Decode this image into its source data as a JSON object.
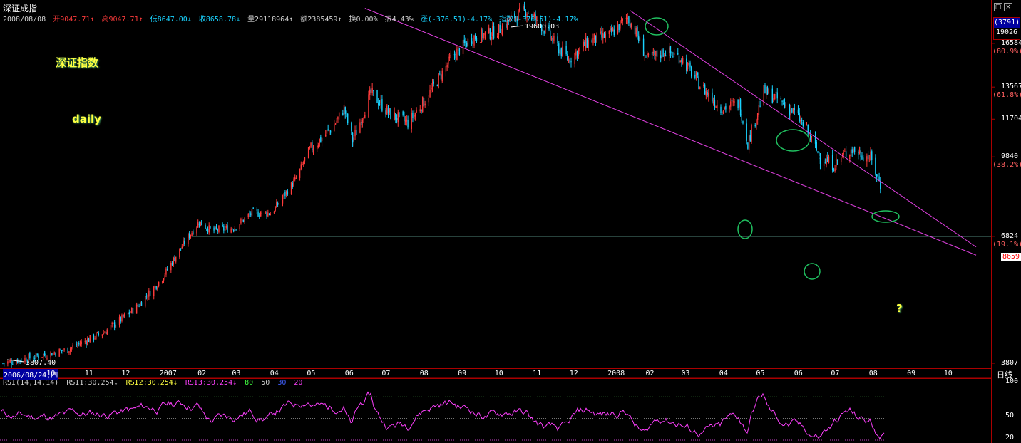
{
  "window": {
    "title": "深证成指",
    "buttons": [
      "▢",
      "×"
    ]
  },
  "info": {
    "date": "2008/08/08",
    "open": "开9047.71↑",
    "high": "高9047.71↑",
    "low": "低8647.00↓",
    "close": "收8658.78↓",
    "volume": "量29118964↑",
    "amount": "额2385459↑",
    "turnover": "换0.00%",
    "amplitude": "振4.43%",
    "change": "涨(-376.51)-4.17%",
    "index": "指数(-376.51)-4.17%"
  },
  "axis_box": {
    "top": "(3791)",
    "bottom": "19026"
  },
  "labels": {
    "name": "深证指数",
    "period": "daily",
    "question": "?"
  },
  "annotations": {
    "high_label": "19600.03",
    "low_label": "3807.40"
  },
  "colors": {
    "up": "#ff3b3b",
    "down": "#19d3ff",
    "trend": "#e040e0",
    "support": "#6ab0a0",
    "ellipse": "#20c060",
    "rsi": "#ff40ff",
    "grid": "#a00000"
  },
  "x_axis": {
    "selected": "2006/08/24,四",
    "unit": "日线"
  },
  "rsi_header": {
    "name": "RSI(14,14,14)",
    "rsi1": "RSI1:30.254↓",
    "rsi2": "RSI2:30.254↓",
    "rsi3": "RSI3:30.254↓",
    "levels": [
      "80",
      "50",
      "30",
      "20"
    ],
    "axis": [
      "100",
      "50",
      "20"
    ]
  },
  "chart_data": {
    "type": "candlestick",
    "title": "深证成指",
    "period": "daily",
    "y_scale": "log",
    "ylim": [
      3807,
      19026
    ],
    "price_ticks": [
      {
        "value": 16584,
        "pct": "(80.9%)"
      },
      {
        "value": 13567,
        "pct": "(61.8%)"
      },
      {
        "value": 11704,
        "pct": ""
      },
      {
        "value": 9840,
        "pct": "(38.2%)"
      },
      {
        "value": 6824,
        "pct": "(19.1%)"
      },
      {
        "value": 3807,
        "pct": ""
      }
    ],
    "current_price": "8659",
    "x_ticks": [
      "10",
      "11",
      "12",
      "2007",
      "02",
      "03",
      "04",
      "05",
      "06",
      "07",
      "08",
      "09",
      "10",
      "11",
      "12",
      "2008",
      "02",
      "03",
      "04",
      "05",
      "06",
      "07",
      "08",
      "09",
      "10"
    ],
    "close_path": [
      [
        "2006-08-24",
        3807
      ],
      [
        "2006-10-15",
        4050
      ],
      [
        "2006-11-15",
        4400
      ],
      [
        "2006-12-10",
        4900
      ],
      [
        "2006-12-31",
        5600
      ],
      [
        "2007-01-20",
        6700
      ],
      [
        "2007-01-31",
        7300
      ],
      [
        "2007-02-10",
        7000
      ],
      [
        "2007-02-28",
        7100
      ],
      [
        "2007-03-15",
        7600
      ],
      [
        "2007-03-31",
        7600
      ],
      [
        "2007-04-20",
        8900
      ],
      [
        "2007-04-30",
        10100
      ],
      [
        "2007-05-20",
        11300
      ],
      [
        "2007-05-29",
        12300
      ],
      [
        "2007-06-05",
        10600
      ],
      [
        "2007-06-20",
        13200
      ],
      [
        "2007-07-05",
        12000
      ],
      [
        "2007-07-20",
        11500
      ],
      [
        "2007-08-05",
        13000
      ],
      [
        "2007-08-25",
        15600
      ],
      [
        "2007-09-10",
        17000
      ],
      [
        "2007-09-30",
        17500
      ],
      [
        "2007-10-15",
        18800
      ],
      [
        "2007-10-25",
        19300
      ],
      [
        "2007-11-05",
        18100
      ],
      [
        "2007-11-20",
        16200
      ],
      [
        "2007-11-28",
        15400
      ],
      [
        "2007-12-15",
        16800
      ],
      [
        "2007-12-31",
        17200
      ],
      [
        "2008-01-15",
        18700
      ],
      [
        "2008-01-21",
        17600
      ],
      [
        "2008-01-31",
        15400
      ],
      [
        "2008-02-15",
        16000
      ],
      [
        "2008-02-28",
        15500
      ],
      [
        "2008-03-15",
        13600
      ],
      [
        "2008-03-31",
        12300
      ],
      [
        "2008-04-15",
        12600
      ],
      [
        "2008-04-22",
        10500
      ],
      [
        "2008-05-05",
        13300
      ],
      [
        "2008-05-15",
        12900
      ],
      [
        "2008-05-31",
        12000
      ],
      [
        "2008-06-10",
        11000
      ],
      [
        "2008-06-20",
        9800
      ],
      [
        "2008-07-01",
        9500
      ],
      [
        "2008-07-15",
        10200
      ],
      [
        "2008-07-31",
        9800
      ],
      [
        "2008-08-08",
        8659
      ]
    ],
    "trendlines": [
      {
        "from": [
          "2007-06-15",
          19500
        ],
        "to": [
          "2008-10-25",
          6260
        ]
      },
      {
        "from": [
          "2008-01-17",
          19300
        ],
        "to": [
          "2008-10-25",
          6500
        ]
      }
    ],
    "support": 6824
  }
}
